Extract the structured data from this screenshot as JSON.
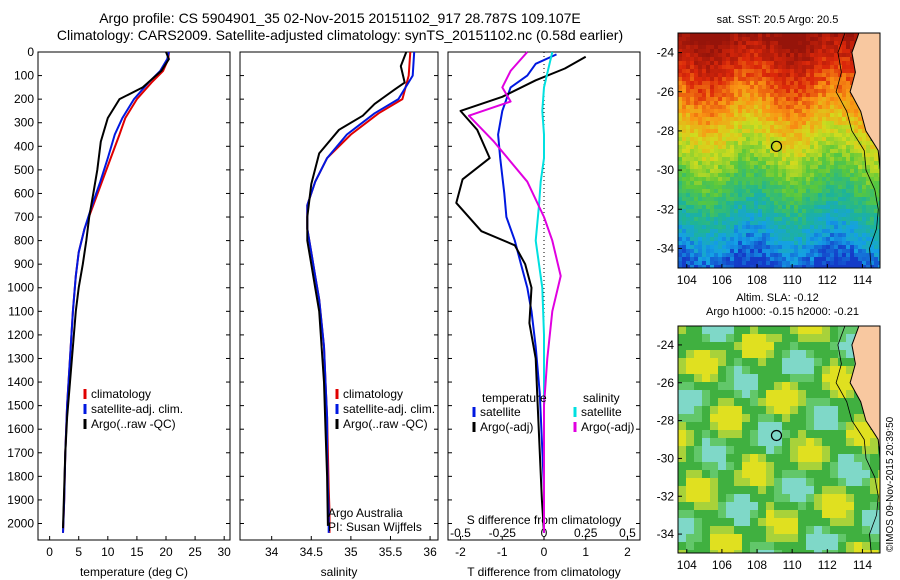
{
  "header": {
    "line1": "Argo profile: CS 5904901_35 02-Nov-2015 20151102_917 28.787S 109.107E",
    "line2": "Climatology: CARS2009. Satellite-adjusted climatology: synTS_20151102.nc (0.58d earlier)"
  },
  "footer_stamp": "©IMOS 09-Nov-2015 20:39:50",
  "colors": {
    "climatology": "#e00000",
    "satellite": "#0018e0",
    "argo": "#000000",
    "salinity_sat": "#00e0e0",
    "salinity_argo": "#e000e0",
    "land": "#f8c8a0"
  },
  "chart_data": [
    {
      "type": "line",
      "id": "temperature",
      "xlabel": "temperature (deg C)",
      "ylabel": "",
      "xlim": [
        -2,
        31
      ],
      "ylim": [
        2070,
        0
      ],
      "xticks": [
        "0",
        "5",
        "10",
        "15",
        "20",
        "25",
        "30"
      ],
      "xtick_values": [
        0,
        5,
        10,
        15,
        20,
        25,
        30
      ],
      "yticks": [
        "0",
        "100",
        "200",
        "300",
        "400",
        "500",
        "600",
        "700",
        "800",
        "900",
        "1000",
        "1100",
        "1200",
        "1300",
        "1400",
        "1500",
        "1600",
        "1700",
        "1800",
        "1900",
        "2000"
      ],
      "ytick_values": [
        0,
        100,
        200,
        300,
        400,
        500,
        600,
        700,
        800,
        900,
        1000,
        1100,
        1200,
        1300,
        1400,
        1500,
        1600,
        1700,
        1800,
        1900,
        2000
      ],
      "legend": [
        "climatology",
        "satellite-adj. clim.",
        "Argo(..raw -QC)"
      ],
      "series": [
        {
          "name": "climatology",
          "color": "#e00000",
          "x": [
            20.5,
            20.4,
            19.5,
            17.5,
            15,
            13,
            12,
            10.5,
            9,
            7.5,
            6,
            5,
            4.5,
            4,
            3.5,
            3,
            2.7,
            2.5,
            2.3
          ],
          "y": [
            0,
            30,
            80,
            130,
            200,
            280,
            350,
            450,
            550,
            650,
            750,
            850,
            950,
            1100,
            1300,
            1500,
            1700,
            1900,
            2040
          ]
        },
        {
          "name": "satellite-adj. clim.",
          "color": "#0018e0",
          "x": [
            20.5,
            20.2,
            19,
            17,
            14.5,
            12.5,
            11.2,
            10,
            8.7,
            7.3,
            6,
            5,
            4.5,
            4,
            3.5,
            3,
            2.7,
            2.5,
            2.3
          ],
          "y": [
            0,
            30,
            80,
            130,
            200,
            280,
            350,
            450,
            550,
            650,
            750,
            850,
            950,
            1100,
            1300,
            1500,
            1700,
            1900,
            2040
          ]
        },
        {
          "name": "Argo(..raw -QC)",
          "color": "#000000",
          "x": [
            20,
            20.5,
            19.2,
            16,
            12,
            10,
            8.8,
            8.2,
            7.5,
            6.8,
            6.3,
            5.7,
            5,
            4.5,
            4,
            3.5,
            3,
            2.7,
            2.5,
            2.3
          ],
          "y": [
            0,
            30,
            80,
            150,
            200,
            280,
            380,
            500,
            600,
            700,
            800,
            900,
            1000,
            1100,
            1250,
            1400,
            1550,
            1700,
            1850,
            2020
          ]
        }
      ],
      "annotations": []
    },
    {
      "type": "line",
      "id": "salinity",
      "xlabel": "salinity",
      "xlim": [
        33.6,
        36.1
      ],
      "ylim": [
        2070,
        0
      ],
      "xticks": [
        "34",
        "34.5",
        "35",
        "35.5",
        "36"
      ],
      "xtick_values": [
        34,
        34.5,
        35,
        35.5,
        36
      ],
      "legend": [
        "climatology",
        "satellite-adj. clim.",
        "Argo(..raw -QC)"
      ],
      "series": [
        {
          "name": "climatology",
          "color": "#e00000",
          "x": [
            35.75,
            35.73,
            35.65,
            35.35,
            35.0,
            34.7,
            34.55,
            34.45,
            34.45,
            34.5,
            34.55,
            34.6,
            34.63,
            34.66,
            34.68,
            34.7,
            34.71,
            34.72,
            34.73,
            34.73
          ],
          "y": [
            0,
            100,
            200,
            260,
            350,
            450,
            550,
            650,
            750,
            850,
            950,
            1050,
            1150,
            1250,
            1400,
            1550,
            1700,
            1850,
            1950,
            2040
          ]
        },
        {
          "name": "satellite-adj. clim.",
          "color": "#0018e0",
          "x": [
            35.8,
            35.78,
            35.6,
            35.3,
            34.95,
            34.7,
            34.55,
            34.45,
            34.45,
            34.5,
            34.55,
            34.6,
            34.63,
            34.66,
            34.68,
            34.7,
            34.7,
            34.71,
            34.72,
            34.72
          ],
          "y": [
            0,
            100,
            200,
            260,
            350,
            450,
            550,
            650,
            750,
            850,
            950,
            1050,
            1150,
            1250,
            1400,
            1550,
            1700,
            1850,
            1950,
            2040
          ]
        },
        {
          "name": "Argo(..raw -QC)",
          "color": "#000000",
          "x": [
            35.7,
            35.63,
            35.68,
            35.55,
            35.3,
            35.15,
            34.85,
            34.6,
            34.5,
            34.45,
            34.45,
            34.5,
            34.55,
            34.6,
            34.63,
            34.66,
            34.68,
            34.7,
            34.71
          ],
          "y": [
            0,
            60,
            130,
            160,
            220,
            270,
            330,
            430,
            560,
            700,
            800,
            900,
            1000,
            1100,
            1250,
            1400,
            1600,
            1800,
            2010
          ]
        }
      ],
      "annotations": [
        "Argo Australia",
        "PI: Susan Wijffels"
      ]
    },
    {
      "type": "line",
      "id": "difference",
      "xlabel": "T difference from climatology",
      "top_label": "S difference from climatology",
      "xlim": [
        -2.3,
        2.3
      ],
      "ylim": [
        2070,
        0
      ],
      "xticks": [
        "-2",
        "-1",
        "0",
        "1",
        "2"
      ],
      "xtick_values": [
        -2,
        -1,
        0,
        1,
        2
      ],
      "sticks": [
        "-0.5",
        "-0.25",
        "0",
        "0.25",
        "0.5"
      ],
      "stick_values": [
        -0.5,
        -0.25,
        0,
        0.25,
        0.5
      ],
      "legend_left_title": "temperature",
      "legend_right_title": "salinity",
      "legend_left": [
        "satellite",
        "Argo(-adj)"
      ],
      "legend_right": [
        "satellite",
        "Argo(-adj)"
      ],
      "series": [
        {
          "name": "T satellite",
          "color": "#0018e0",
          "x": [
            0.3,
            -0.2,
            -0.4,
            -0.8,
            -1.0,
            -1.1,
            -1.05,
            -0.95,
            -0.9,
            -0.7,
            -0.55,
            -0.4,
            -0.3,
            -0.2,
            -0.1,
            -0.05,
            0,
            0
          ],
          "y": [
            10,
            50,
            100,
            150,
            250,
            350,
            450,
            600,
            700,
            800,
            900,
            1000,
            1100,
            1250,
            1450,
            1650,
            1850,
            2040
          ]
        },
        {
          "name": "T Argo(-adj)",
          "color": "#000000",
          "x": [
            1.0,
            0.5,
            -0.2,
            -1.0,
            -2.0,
            -1.6,
            -1.3,
            -1.95,
            -2.1,
            -1.5,
            -0.7,
            -0.45,
            -0.3,
            -0.35,
            -0.2,
            -0.15,
            -0.1,
            -0.05,
            0
          ],
          "y": [
            20,
            70,
            120,
            190,
            250,
            330,
            450,
            540,
            640,
            760,
            820,
            900,
            1000,
            1150,
            1300,
            1500,
            1700,
            1900,
            2040
          ]
        },
        {
          "name": "S satellite",
          "color": "#00e0e0",
          "x": [
            0.05,
            0.0,
            -0.01,
            0.0,
            0.0,
            -0.02,
            -0.03,
            -0.05,
            -0.03,
            -0.01,
            0.0,
            0.0,
            0.0,
            0.0,
            0.0
          ],
          "y": [
            0,
            150,
            250,
            350,
            450,
            550,
            650,
            800,
            900,
            1000,
            1200,
            1400,
            1600,
            1800,
            2040
          ]
        },
        {
          "name": "S Argo(-adj)",
          "color": "#e000e0",
          "x": [
            -0.1,
            -0.2,
            -0.25,
            -0.2,
            -0.45,
            -0.3,
            -0.1,
            0.0,
            0.05,
            0.1,
            0.05,
            0.02,
            0.0,
            0.0,
            0.0
          ],
          "y": [
            0,
            80,
            150,
            210,
            270,
            380,
            550,
            700,
            800,
            950,
            1100,
            1300,
            1500,
            1700,
            2040
          ]
        }
      ]
    },
    {
      "type": "heatmap",
      "id": "sst_map",
      "title": "sat. SST: 20.5 Argo: 20.5",
      "xlim": [
        103.5,
        115
      ],
      "ylim": [
        -35,
        -23
      ],
      "xticks": [
        "104",
        "106",
        "108",
        "110",
        "112",
        "114"
      ],
      "xtick_values": [
        104,
        106,
        108,
        110,
        112,
        114
      ],
      "yticks": [
        "-24",
        "-26",
        "-28",
        "-30",
        "-32",
        "-34"
      ],
      "ytick_values": [
        -24,
        -26,
        -28,
        -30,
        -32,
        -34
      ],
      "marker": {
        "lon": 109.107,
        "lat": -28.787
      }
    },
    {
      "type": "heatmap",
      "id": "sla_map",
      "title": "Altim. SLA: -0.12",
      "subtitle": "Argo h1000: -0.15 h2000: -0.21",
      "xlim": [
        103.5,
        115
      ],
      "ylim": [
        -35,
        -23
      ],
      "xticks": [
        "104",
        "106",
        "108",
        "110",
        "112",
        "114"
      ],
      "xtick_values": [
        104,
        106,
        108,
        110,
        112,
        114
      ],
      "yticks": [
        "-24",
        "-26",
        "-28",
        "-30",
        "-32",
        "-34"
      ],
      "ytick_values": [
        -24,
        -26,
        -28,
        -30,
        -32,
        -34
      ],
      "marker": {
        "lon": 109.107,
        "lat": -28.787
      }
    }
  ]
}
